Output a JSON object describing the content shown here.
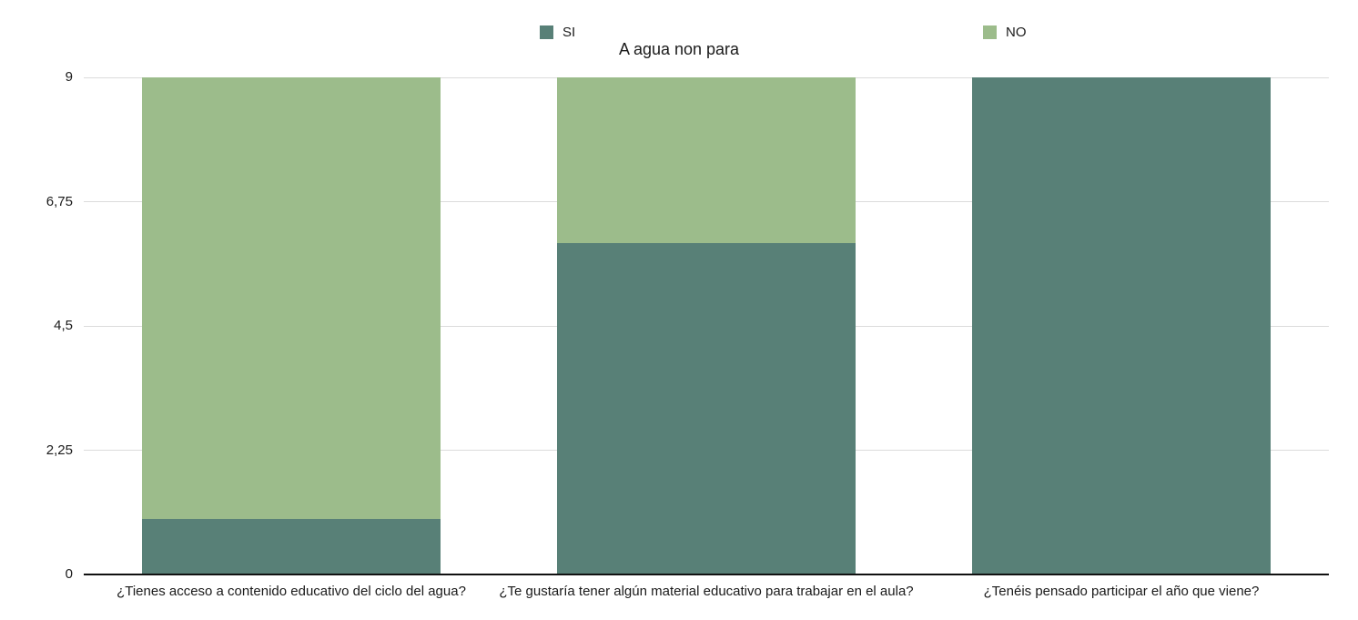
{
  "chart_data": {
    "type": "bar",
    "stacked": true,
    "title": "A agua non para",
    "categories": [
      "¿Tienes acceso a contenido educativo del ciclo del agua?",
      "¿Te gustaría tener algún material educativo para trabajar en el aula?",
      "¿Tenéis pensado participar el año que viene?"
    ],
    "series": [
      {
        "name": "SI",
        "color": "#588077",
        "values": [
          1,
          6,
          9
        ]
      },
      {
        "name": "NO",
        "color": "#9cbc8b",
        "values": [
          8,
          3,
          0
        ]
      }
    ],
    "ylim": [
      0,
      9
    ],
    "yticks": [
      0,
      2.25,
      4.5,
      6.75,
      9
    ],
    "ytick_labels": [
      "0",
      "2,25",
      "4,5",
      "6,75",
      "9"
    ],
    "grid": true,
    "legend_position": "top",
    "axis_color": "#111111",
    "gridline_color": "#dcdcdc"
  }
}
